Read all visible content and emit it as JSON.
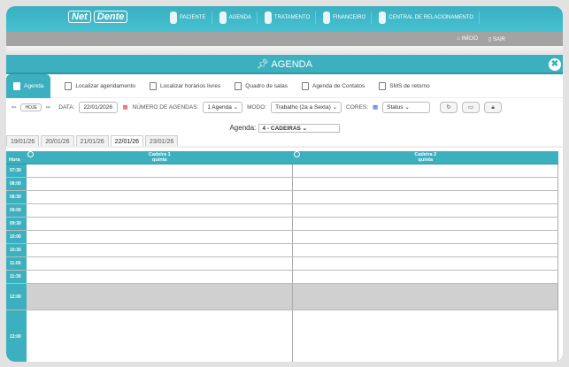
{
  "brand": {
    "logo_left": "Net",
    "logo_right": "Dente"
  },
  "nav": [
    {
      "label": "PACIENTE",
      "icon": "person-icon"
    },
    {
      "label": "AGENDA",
      "icon": "notebook-icon"
    },
    {
      "label": "TRATAMENTO",
      "icon": "tooth-icon"
    },
    {
      "label": "FINANCEIRO",
      "icon": "dollar-icon"
    },
    {
      "label": "CENTRAL DE RELACIONAMENTO",
      "icon": "headset-icon"
    }
  ],
  "userbar": {
    "home": "INÍCIO",
    "exit": "SAIR"
  },
  "title": "AGENDA",
  "tabs": [
    {
      "label": "Agenda",
      "active": true
    },
    {
      "label": "Localizar agendamento"
    },
    {
      "label": "Localizar horários livres"
    },
    {
      "label": "Quadro de salas"
    },
    {
      "label": "Agenda de Contatos"
    },
    {
      "label": "SMS de retorno"
    }
  ],
  "toolbar": {
    "today": "HOJE",
    "date_label": "DATA:",
    "date": "22/01/2026",
    "num_label": "NÚMERO DE AGENDAS:",
    "num": "1 Agenda",
    "mode_label": "MODO:",
    "mode": "Trabalho (2a a Sexta)",
    "colors_label": "CORES:",
    "colors": "Status"
  },
  "agenda_label": "Agenda:",
  "agenda_value": "4 - CADEIRAS",
  "date_tabs": [
    "19/01/26",
    "20/01/26",
    "21/01/26",
    "22/01/26",
    "23/01/26"
  ],
  "active_date": "22/01/26",
  "grid": {
    "hour_label": "Hora",
    "columns": [
      {
        "name": "Cadeira 1",
        "day": "quinta"
      },
      {
        "name": "Cadeira 2",
        "day": "quinta"
      }
    ],
    "rows": [
      "07:30",
      "08:00",
      "08:30",
      "09:00",
      "09:30",
      "10:00",
      "10:30",
      "11:00",
      "11:30",
      "12:00",
      "13:00"
    ]
  },
  "colors": {
    "accent": "#3db0bf",
    "lunch": "#d0d0d0"
  }
}
